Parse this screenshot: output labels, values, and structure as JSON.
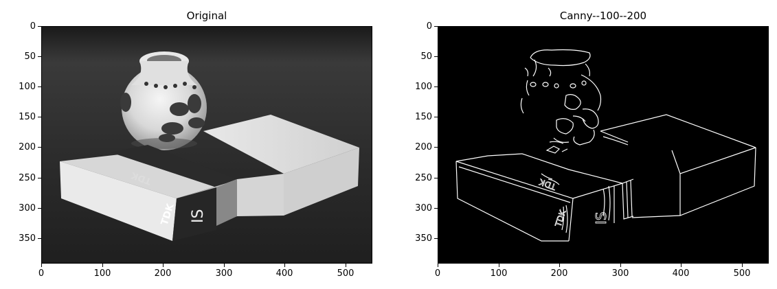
{
  "panels": [
    {
      "title": "Original",
      "x_ticks": [
        "0",
        "100",
        "200",
        "300",
        "400",
        "500"
      ],
      "y_ticks": [
        "0",
        "50",
        "100",
        "150",
        "200",
        "250",
        "300",
        "350"
      ],
      "image": "grayscale photo of a ceramic vase and two TDK cassette boxes"
    },
    {
      "title": "Canny--100--200",
      "x_ticks": [
        "0",
        "100",
        "200",
        "300",
        "400",
        "500"
      ],
      "y_ticks": [
        "0",
        "50",
        "100",
        "150",
        "200",
        "250",
        "300",
        "350"
      ],
      "image": "black canny edge map showing white outlines of vase and boxes"
    }
  ],
  "labels": {
    "tdk": "TDK",
    "sa": "SA",
    "is": "IS"
  }
}
